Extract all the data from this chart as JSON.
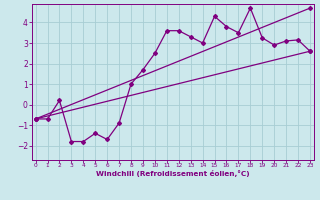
{
  "xlabel": "Windchill (Refroidissement éolien,°C)",
  "bg_color": "#cce8ec",
  "line_color": "#800080",
  "grid_color": "#a8cdd4",
  "xticks": [
    0,
    1,
    2,
    3,
    4,
    5,
    6,
    7,
    8,
    9,
    10,
    11,
    12,
    13,
    14,
    15,
    16,
    17,
    18,
    19,
    20,
    21,
    22,
    23
  ],
  "yticks": [
    -2,
    -1,
    0,
    1,
    2,
    3,
    4
  ],
  "xlim": [
    -0.3,
    23.3
  ],
  "ylim": [
    -2.7,
    4.9
  ],
  "line1_x": [
    0,
    1,
    2,
    3,
    4,
    5,
    6,
    7,
    8,
    9,
    10,
    11,
    12,
    13,
    14,
    15,
    16,
    17,
    18,
    19,
    20,
    21,
    22,
    23
  ],
  "line1_y": [
    -0.7,
    -0.7,
    0.2,
    -1.8,
    -1.8,
    -1.4,
    -1.7,
    -0.9,
    1.0,
    1.7,
    2.5,
    3.6,
    3.6,
    3.3,
    3.0,
    4.3,
    3.8,
    3.5,
    4.7,
    3.25,
    2.9,
    3.1,
    3.15,
    2.6
  ],
  "line2_x": [
    0,
    23
  ],
  "line2_y": [
    -0.7,
    2.6
  ],
  "line3_x": [
    0,
    23
  ],
  "line3_y": [
    -0.7,
    4.7
  ]
}
